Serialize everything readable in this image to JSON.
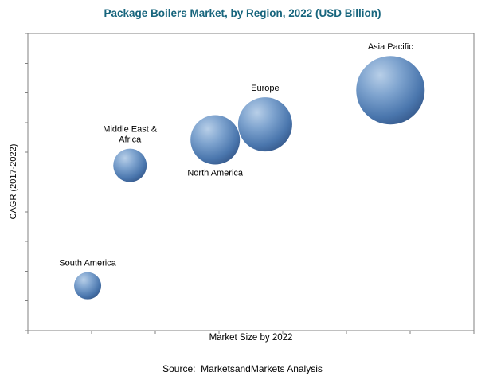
{
  "source_note": "Source:  MarketsandMarkets Analysis",
  "chart_data": {
    "type": "scatter",
    "subtype": "bubble",
    "title": "Package Boilers Market, by Region, 2022 (USD Billion)",
    "xlabel": "Market Size by 2022",
    "ylabel": "CAGR (2017-2022)",
    "grid": false,
    "legend": "none",
    "axis_tick_labels_visible": false,
    "x_tick_count": 8,
    "y_tick_count": 11,
    "bubble_base_color": "#4a76ad",
    "bubble_highlight_color": "#b8cfe8",
    "bubble_shadow_color": "#2f4f80",
    "title_color": "#17657d",
    "axis_color": "#808080",
    "points": [
      {
        "label": "South America",
        "label_lines": [
          "South America"
        ],
        "x": 0.134,
        "y": 0.151,
        "r": 17,
        "label_position": "above"
      },
      {
        "label": "Middle East & Africa",
        "label_lines": [
          "Middle East &",
          "Africa"
        ],
        "x": 0.229,
        "y": 0.556,
        "r": 21,
        "label_position": "above"
      },
      {
        "label": "North America",
        "label_lines": [
          "North America"
        ],
        "x": 0.42,
        "y": 0.642,
        "r": 31,
        "label_position": "below"
      },
      {
        "label": "Europe",
        "label_lines": [
          "Europe"
        ],
        "x": 0.532,
        "y": 0.694,
        "r": 34,
        "label_position": "above"
      },
      {
        "label": "Asia Pacific",
        "label_lines": [
          "Asia Pacific"
        ],
        "x": 0.813,
        "y": 0.809,
        "r": 43,
        "label_position": "above"
      }
    ]
  }
}
